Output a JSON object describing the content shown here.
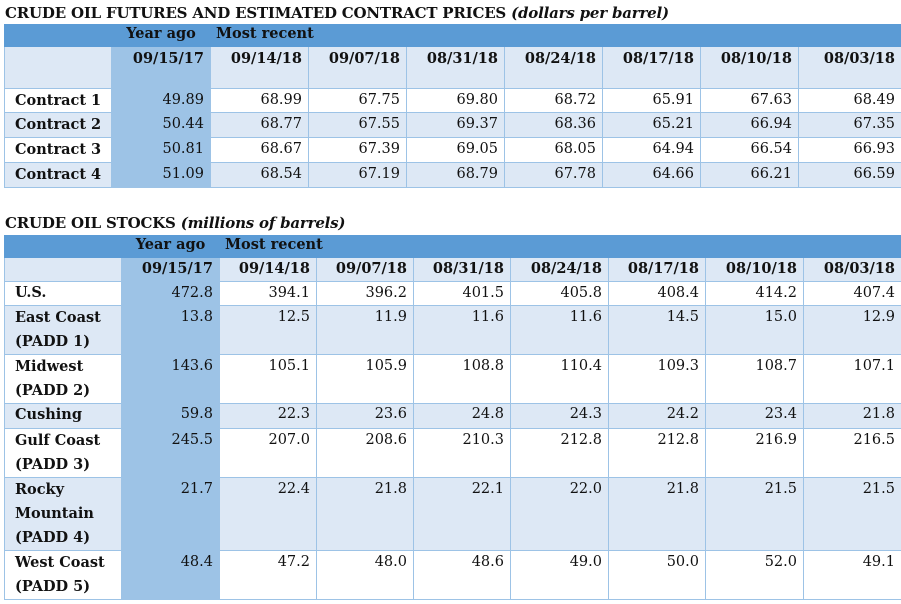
{
  "futures": {
    "title": "CRUDE OIL FUTURES AND ESTIMATED CONTRACT PRICES",
    "unit": "(dollars per barrel)",
    "year_ago_label": "Year ago",
    "most_recent_label": "Most recent",
    "dates": [
      "09/15/17",
      "09/14/18",
      "09/07/18",
      "08/31/18",
      "08/24/18",
      "08/17/18",
      "08/10/18",
      "08/03/18"
    ],
    "rows": [
      {
        "label": "Contract 1",
        "values": [
          "49.89",
          "68.99",
          "67.75",
          "69.80",
          "68.72",
          "65.91",
          "67.63",
          "68.49"
        ]
      },
      {
        "label": "Contract 2",
        "values": [
          "50.44",
          "68.77",
          "67.55",
          "69.37",
          "68.36",
          "65.21",
          "66.94",
          "67.35"
        ]
      },
      {
        "label": "Contract 3",
        "values": [
          "50.81",
          "68.67",
          "67.39",
          "69.05",
          "68.05",
          "64.94",
          "66.54",
          "66.93"
        ]
      },
      {
        "label": "Contract 4",
        "values": [
          "51.09",
          "68.54",
          "67.19",
          "68.79",
          "67.78",
          "64.66",
          "66.21",
          "66.59"
        ]
      }
    ]
  },
  "stocks": {
    "title": "CRUDE OIL STOCKS",
    "unit": "(millions of barrels)",
    "year_ago_label": "Year ago",
    "most_recent_label": "Most recent",
    "dates": [
      "09/15/17",
      "09/14/18",
      "09/07/18",
      "08/31/18",
      "08/24/18",
      "08/17/18",
      "08/10/18",
      "08/03/18"
    ],
    "rows": [
      {
        "label": "U.S.",
        "values": [
          "472.8",
          "394.1",
          "396.2",
          "401.5",
          "405.8",
          "408.4",
          "414.2",
          "407.4"
        ]
      },
      {
        "label": "East Coast (PADD 1)",
        "values": [
          "13.8",
          "12.5",
          "11.9",
          "11.6",
          "11.6",
          "14.5",
          "15.0",
          "12.9"
        ]
      },
      {
        "label": "Midwest (PADD 2)",
        "values": [
          "143.6",
          "105.1",
          "105.9",
          "108.8",
          "110.4",
          "109.3",
          "108.7",
          "107.1"
        ]
      },
      {
        "label": "Cushing",
        "values": [
          "59.8",
          "22.3",
          "23.6",
          "24.8",
          "24.3",
          "24.2",
          "23.4",
          "21.8"
        ]
      },
      {
        "label": "Gulf Coast (PADD 3)",
        "values": [
          "245.5",
          "207.0",
          "208.6",
          "210.3",
          "212.8",
          "212.8",
          "216.9",
          "216.5"
        ]
      },
      {
        "label": "Rocky Mountain (PADD 4)",
        "values": [
          "21.7",
          "22.4",
          "21.8",
          "22.1",
          "22.0",
          "21.8",
          "21.5",
          "21.5"
        ]
      },
      {
        "label": "West Coast (PADD 5)",
        "values": [
          "48.4",
          "47.2",
          "48.0",
          "48.6",
          "49.0",
          "50.0",
          "52.0",
          "49.1"
        ]
      }
    ]
  }
}
